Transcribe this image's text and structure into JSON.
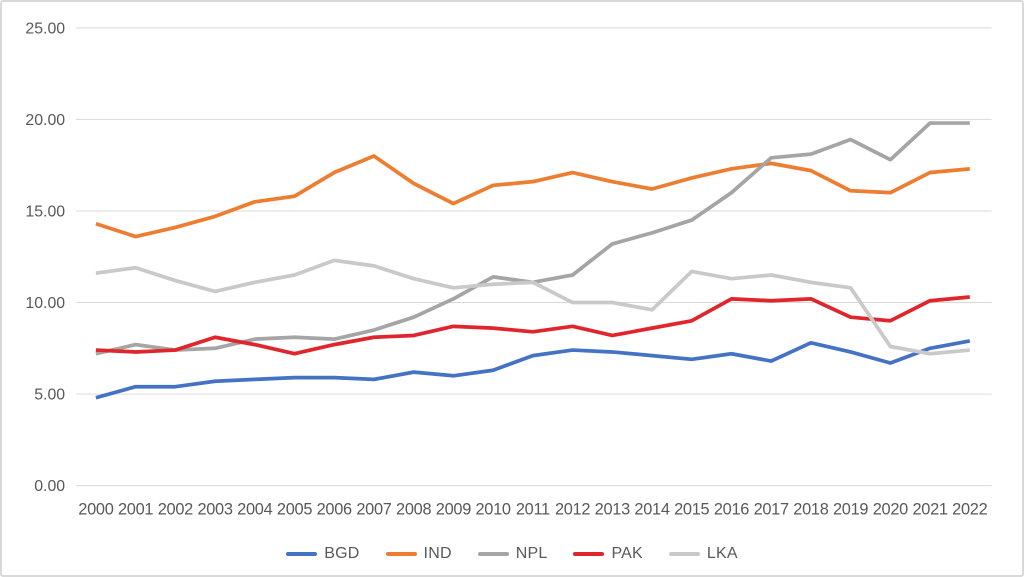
{
  "chart_data": {
    "type": "line",
    "title": "",
    "xlabel": "",
    "ylabel": "",
    "x": [
      2000,
      2001,
      2002,
      2003,
      2004,
      2005,
      2006,
      2007,
      2008,
      2009,
      2010,
      2011,
      2012,
      2013,
      2014,
      2015,
      2016,
      2017,
      2018,
      2019,
      2020,
      2021,
      2022
    ],
    "series": [
      {
        "name": "BGD",
        "color": "#4472C4",
        "values": [
          4.8,
          5.4,
          5.4,
          5.7,
          5.8,
          5.9,
          5.9,
          5.8,
          6.2,
          6.0,
          6.3,
          7.1,
          7.4,
          7.3,
          7.1,
          6.9,
          7.2,
          6.8,
          7.8,
          7.3,
          6.7,
          7.5,
          7.9
        ]
      },
      {
        "name": "IND",
        "color": "#ED7D31",
        "values": [
          14.3,
          13.6,
          14.1,
          14.7,
          15.5,
          15.8,
          17.1,
          18.0,
          16.5,
          15.4,
          16.4,
          16.6,
          17.1,
          16.6,
          16.2,
          16.8,
          17.3,
          17.6,
          17.2,
          16.1,
          16.0,
          17.1,
          17.3
        ]
      },
      {
        "name": "NPL",
        "color": "#A5A5A5",
        "values": [
          7.2,
          7.7,
          7.4,
          7.5,
          8.0,
          8.1,
          8.0,
          8.5,
          9.2,
          10.2,
          11.4,
          11.1,
          11.5,
          13.2,
          13.8,
          14.5,
          16.0,
          17.9,
          18.1,
          18.9,
          17.8,
          19.8,
          19.8
        ]
      },
      {
        "name": "PAK",
        "color": "#E0262C",
        "values": [
          7.4,
          7.3,
          7.4,
          8.1,
          7.7,
          7.2,
          7.7,
          8.1,
          8.2,
          8.7,
          8.6,
          8.4,
          8.7,
          8.2,
          8.6,
          9.0,
          10.2,
          10.1,
          10.2,
          9.2,
          9.0,
          10.1,
          10.3
        ]
      },
      {
        "name": "LKA",
        "color": "#C9C9C9",
        "values": [
          11.6,
          11.9,
          11.2,
          10.6,
          11.1,
          11.5,
          12.3,
          12.0,
          11.3,
          10.8,
          11.0,
          11.1,
          10.0,
          10.0,
          9.6,
          11.7,
          11.3,
          11.5,
          11.1,
          10.8,
          7.6,
          7.2,
          7.4
        ]
      }
    ],
    "ylim": [
      0,
      25
    ],
    "ytick_step": 5,
    "y_axis_labels": [
      "25.00",
      "20.00",
      "15.00",
      "10.00",
      "5.00",
      "0.00"
    ],
    "grid": "horizontal",
    "legend_position": "bottom",
    "legend_labels": [
      "BGD",
      "IND",
      "NPL",
      "PAK",
      "LKA"
    ]
  },
  "colors": {
    "gridline": "#D9D9D9",
    "axis_text": "#595959",
    "frame_border": "#D9D9D9",
    "background": "#FFFFFF"
  }
}
